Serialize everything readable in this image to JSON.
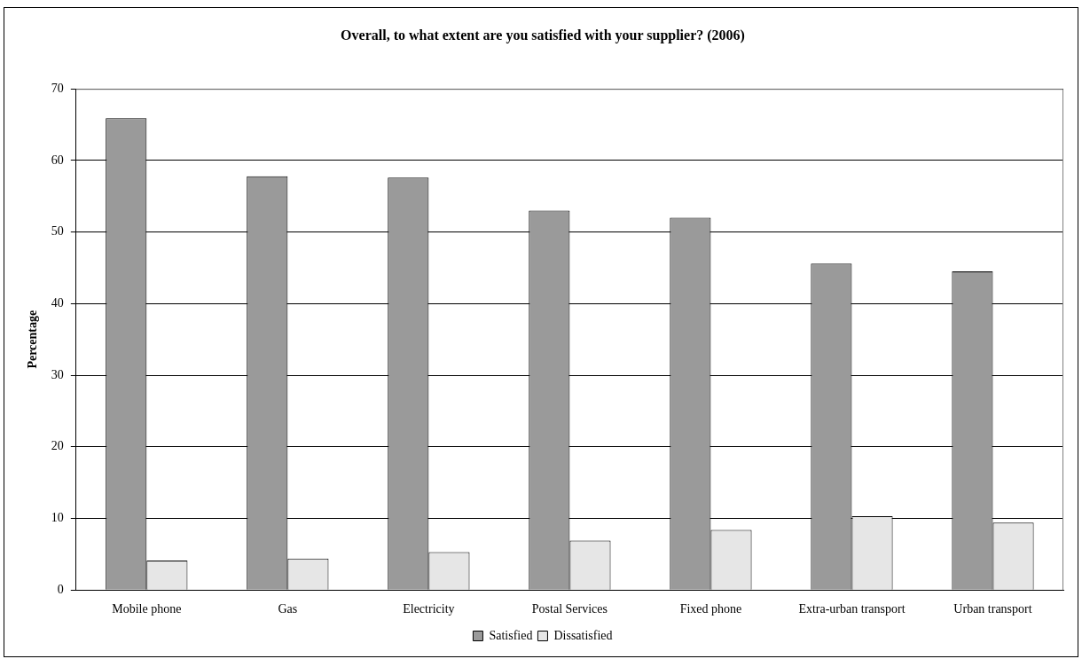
{
  "chart_data": {
    "type": "bar",
    "title": "Overall, to what extent are you satisfied with your supplier? (2006)",
    "ylabel": "Percentage",
    "categories": [
      "Mobile phone",
      "Gas",
      "Electricity",
      "Postal Services",
      "Fixed phone",
      "Extra-urban transport",
      "Urban transport"
    ],
    "series": [
      {
        "name": "Satisfied",
        "color": "#9a9a9a",
        "values": [
          65.9,
          57.8,
          57.6,
          53,
          52,
          45.6,
          44.5
        ]
      },
      {
        "name": "Dissatisfied",
        "color": "#e6e6e6",
        "values": [
          4.1,
          4.4,
          5.3,
          6.9,
          8.4,
          10.3,
          9.4
        ]
      }
    ],
    "ylim": [
      0,
      70
    ],
    "yticks": [
      0,
      10,
      20,
      30,
      40,
      50,
      60,
      70
    ],
    "grid": "y",
    "legend": "bottom"
  }
}
